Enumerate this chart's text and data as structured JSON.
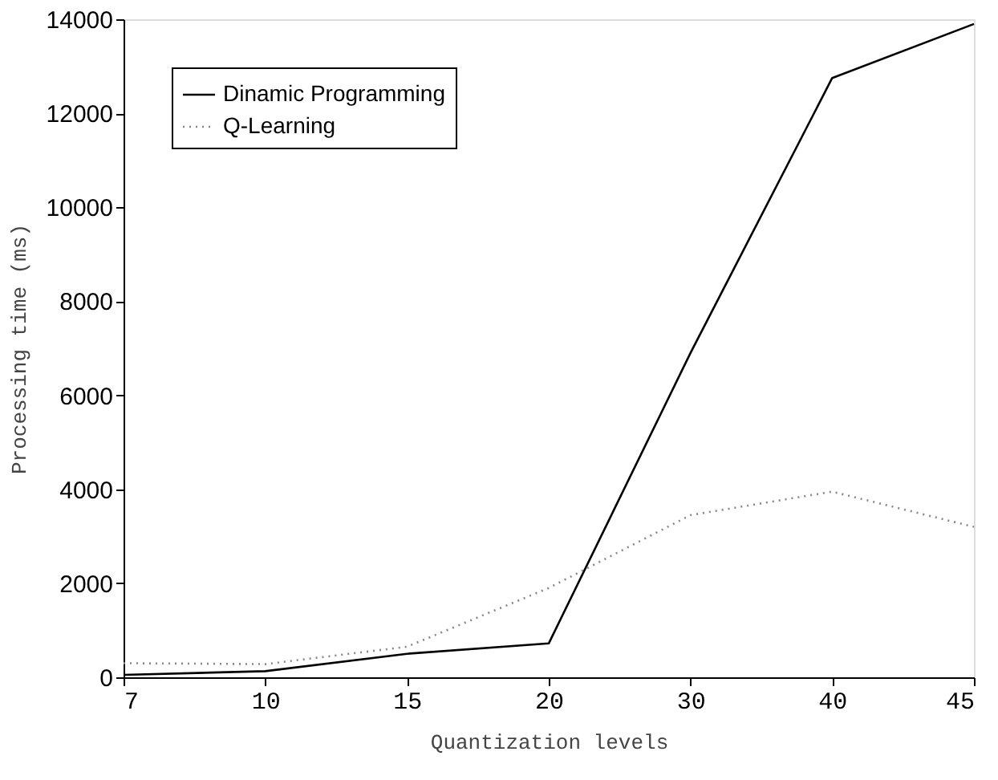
{
  "chart_data": {
    "type": "line",
    "xlabel": "Quantization levels",
    "ylabel": "Processing time (ms)",
    "categories": [
      "7",
      "10",
      "15",
      "20",
      "30",
      "40",
      "45"
    ],
    "series": [
      {
        "name": "Dinamic Programming",
        "color": "#000000",
        "line_style": "solid",
        "values": [
          50,
          130,
          500,
          720,
          6900,
          12750,
          13900
        ]
      },
      {
        "name": "Q-Learning",
        "color": "#888888",
        "line_style": "dotted",
        "values": [
          300,
          280,
          650,
          1900,
          3450,
          3950,
          3200
        ]
      }
    ],
    "ylim": [
      0,
      14000
    ],
    "yticks": [
      0,
      2000,
      4000,
      6000,
      8000,
      10000,
      12000,
      14000
    ],
    "grid": false,
    "legend": "top left",
    "marker": "none"
  }
}
